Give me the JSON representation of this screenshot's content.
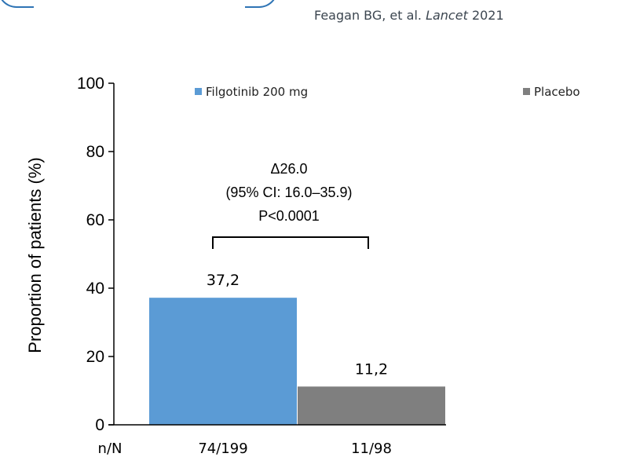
{
  "header": {
    "citation_authors": "Feagan BG, et al.",
    "citation_journal": "Lancet",
    "citation_year": "2021"
  },
  "chart_data": {
    "type": "bar",
    "categories": [
      "Filgotinib 200 mg",
      "Placebo"
    ],
    "values": [
      37.2,
      11.2
    ],
    "value_labels": [
      "37,2",
      "11,2"
    ],
    "n_over_N": [
      "74/199",
      "11/98"
    ],
    "n_label": "n/N",
    "ylabel": "Proportion of patients (%)",
    "ylim": [
      0,
      100
    ],
    "yticks": [
      0,
      20,
      40,
      60,
      80,
      100
    ],
    "legend": [
      {
        "name": "Filgotinib 200 mg",
        "color": "#5b9bd5"
      },
      {
        "name": "Placebo",
        "color": "#7f7f7f"
      }
    ],
    "legend_position": "top",
    "annotation": [
      "Δ26.0",
      "(95% CI: 16.0–35.9)",
      "P<0.0001"
    ],
    "colors": [
      "#5b9bd5",
      "#7f7f7f"
    ],
    "grid": false
  }
}
